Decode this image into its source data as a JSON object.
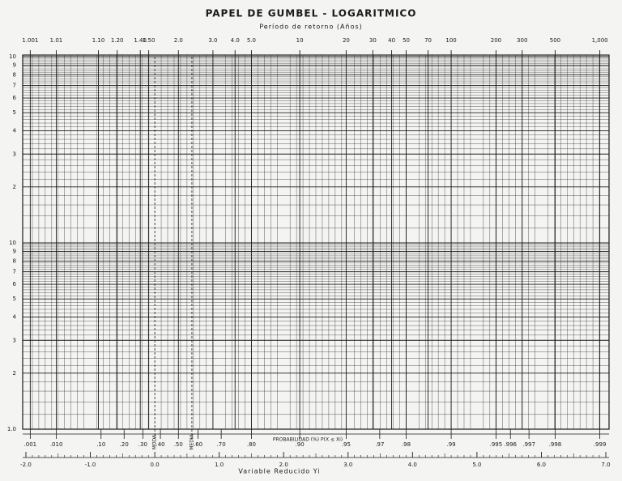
{
  "chart_data": {
    "type": "gumbel-paper",
    "title": "PAPEL DE GUMBEL - LOGARITMICO",
    "subtitle": "Período de retorno (Años)",
    "xlabel": "Variable Reducido Yi",
    "probability_label": "PROBABILIDAD (%) P(X ≤ Xi)",
    "xlim": [
      -2,
      7
    ],
    "xticks": [
      {
        "value": -2,
        "label": "-2.0"
      },
      {
        "value": -1,
        "label": "-1.0"
      },
      {
        "value": 0,
        "label": "0.0"
      },
      {
        "value": 1,
        "label": "1.0"
      },
      {
        "value": 2,
        "label": "2.0"
      },
      {
        "value": 3,
        "label": "3.0"
      },
      {
        "value": 4,
        "label": "4.0"
      },
      {
        "value": 5,
        "label": "5.0"
      },
      {
        "value": 6,
        "label": "6.0"
      },
      {
        "value": 7,
        "label": "7.0"
      }
    ],
    "return_period_ticks": [
      1.001,
      1.01,
      {
        "value": 1.1,
        "label": "1.10"
      },
      {
        "value": 1.2,
        "label": "1.20"
      },
      {
        "value": 1.4,
        "label": "1.40"
      },
      {
        "value": 1.5,
        "label": "1.50"
      },
      {
        "value": 2,
        "label": "2.0"
      },
      {
        "value": 3,
        "label": "3.0"
      },
      {
        "value": 4,
        "label": "4.0"
      },
      {
        "value": 5,
        "label": "5.0"
      },
      10,
      20,
      30,
      40,
      50,
      70,
      100,
      200,
      300,
      500,
      {
        "value": 1000,
        "label": "1,000"
      }
    ],
    "probability_ticks": [
      {
        "value": 0.001,
        "label": ".001"
      },
      {
        "value": 0.01,
        "label": ".010"
      },
      {
        "value": 0.1,
        "label": ".10"
      },
      {
        "value": 0.2,
        "label": ".20"
      },
      {
        "value": 0.3,
        "label": ".30"
      },
      {
        "value": 0.368,
        "label": "MODA"
      },
      {
        "value": 0.4,
        "label": ".40"
      },
      {
        "value": 0.5,
        "label": ".50"
      },
      {
        "value": 0.57,
        "label": "MEDIA"
      },
      {
        "value": 0.6,
        "label": ".60"
      },
      {
        "value": 0.7,
        "label": ".70"
      },
      {
        "value": 0.8,
        "label": ".80"
      },
      {
        "value": 0.9,
        "label": ".90"
      },
      {
        "value": 0.95,
        "label": ".95"
      },
      {
        "value": 0.97,
        "label": ".97"
      },
      {
        "value": 0.98,
        "label": ".98"
      },
      {
        "value": 0.99,
        "label": ".99"
      },
      {
        "value": 0.995,
        "label": ".995"
      },
      {
        "value": 0.996,
        "label": ".996"
      },
      {
        "value": 0.997,
        "label": ".997"
      },
      {
        "value": 0.998,
        "label": ".998"
      },
      {
        "value": 0.999,
        "label": ".999"
      }
    ],
    "ylim": [
      1,
      100
    ],
    "yscale": "log",
    "yticks": [
      {
        "value": 1,
        "label": "1.0"
      },
      2,
      3,
      4,
      5,
      6,
      7,
      8,
      9,
      10,
      {
        "value": 20,
        "label": "2"
      },
      {
        "value": 30,
        "label": "3"
      },
      {
        "value": 40,
        "label": "4"
      },
      {
        "value": 50,
        "label": "5"
      },
      {
        "value": 60,
        "label": "6"
      },
      {
        "value": 70,
        "label": "7"
      },
      {
        "value": 80,
        "label": "8"
      },
      {
        "value": 90,
        "label": "9"
      },
      {
        "value": 100,
        "label": "10"
      }
    ],
    "grid": true,
    "color": "#1a1a1a"
  }
}
